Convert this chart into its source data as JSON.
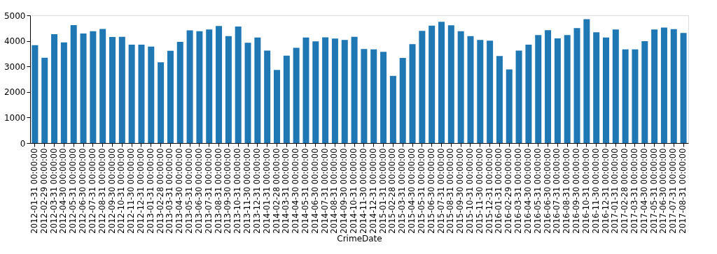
{
  "chart_data": {
    "type": "bar",
    "xlabel": "CrimeDate",
    "categories": [
      "2012-01-31 00:00:00",
      "2012-02-29 00:00:00",
      "2012-03-31 00:00:00",
      "2012-04-30 00:00:00",
      "2012-05-31 00:00:00",
      "2012-06-30 00:00:00",
      "2012-07-31 00:00:00",
      "2012-08-31 00:00:00",
      "2012-09-30 00:00:00",
      "2012-10-31 00:00:00",
      "2012-11-30 00:00:00",
      "2012-12-31 00:00:00",
      "2013-01-31 00:00:00",
      "2013-02-28 00:00:00",
      "2013-03-31 00:00:00",
      "2013-04-30 00:00:00",
      "2013-05-31 00:00:00",
      "2013-06-30 00:00:00",
      "2013-07-31 00:00:00",
      "2013-08-31 00:00:00",
      "2013-09-30 00:00:00",
      "2013-10-31 00:00:00",
      "2013-11-30 00:00:00",
      "2013-12-31 00:00:00",
      "2014-01-31 00:00:00",
      "2014-02-28 00:00:00",
      "2014-03-31 00:00:00",
      "2014-04-30 00:00:00",
      "2014-05-31 00:00:00",
      "2014-06-30 00:00:00",
      "2014-07-31 00:00:00",
      "2014-08-31 00:00:00",
      "2014-09-30 00:00:00",
      "2014-10-31 00:00:00",
      "2014-11-30 00:00:00",
      "2014-12-31 00:00:00",
      "2015-01-31 00:00:00",
      "2015-02-28 00:00:00",
      "2015-03-31 00:00:00",
      "2015-04-30 00:00:00",
      "2015-05-31 00:00:00",
      "2015-06-30 00:00:00",
      "2015-07-31 00:00:00",
      "2015-08-31 00:00:00",
      "2015-09-30 00:00:00",
      "2015-10-31 00:00:00",
      "2015-11-30 00:00:00",
      "2015-12-31 00:00:00",
      "2016-01-31 00:00:00",
      "2016-02-29 00:00:00",
      "2016-03-31 00:00:00",
      "2016-04-30 00:00:00",
      "2016-05-31 00:00:00",
      "2016-06-30 00:00:00",
      "2016-07-31 00:00:00",
      "2016-08-31 00:00:00",
      "2016-09-30 00:00:00",
      "2016-10-31 00:00:00",
      "2016-11-30 00:00:00",
      "2016-12-31 00:00:00",
      "2017-01-31 00:00:00",
      "2017-02-28 00:00:00",
      "2017-03-31 00:00:00",
      "2017-04-30 00:00:00",
      "2017-05-31 00:00:00",
      "2017-06-30 00:00:00",
      "2017-07-31 00:00:00",
      "2017-08-31 00:00:00"
    ],
    "values": [
      3830,
      3340,
      4260,
      3940,
      4620,
      4290,
      4380,
      4470,
      4150,
      4160,
      3850,
      3850,
      3780,
      3160,
      3610,
      3960,
      4410,
      4380,
      4450,
      4580,
      4190,
      4560,
      3930,
      4130,
      3620,
      2860,
      3420,
      3730,
      4130,
      3980,
      4140,
      4090,
      4040,
      4160,
      3680,
      3670,
      3570,
      2630,
      3330,
      3870,
      4390,
      4600,
      4750,
      4610,
      4380,
      4190,
      4040,
      4010,
      3410,
      2880,
      3620,
      3850,
      4230,
      4420,
      4100,
      4230,
      4500,
      4850,
      4340,
      4130,
      4450,
      3670,
      3670,
      3990,
      4450,
      4520,
      4460,
      4310
    ],
    "color": "#1f77b4",
    "ylim": [
      0,
      5000
    ],
    "yticks": [
      0,
      1000,
      2000,
      3000,
      4000,
      5000
    ],
    "grid": false
  }
}
